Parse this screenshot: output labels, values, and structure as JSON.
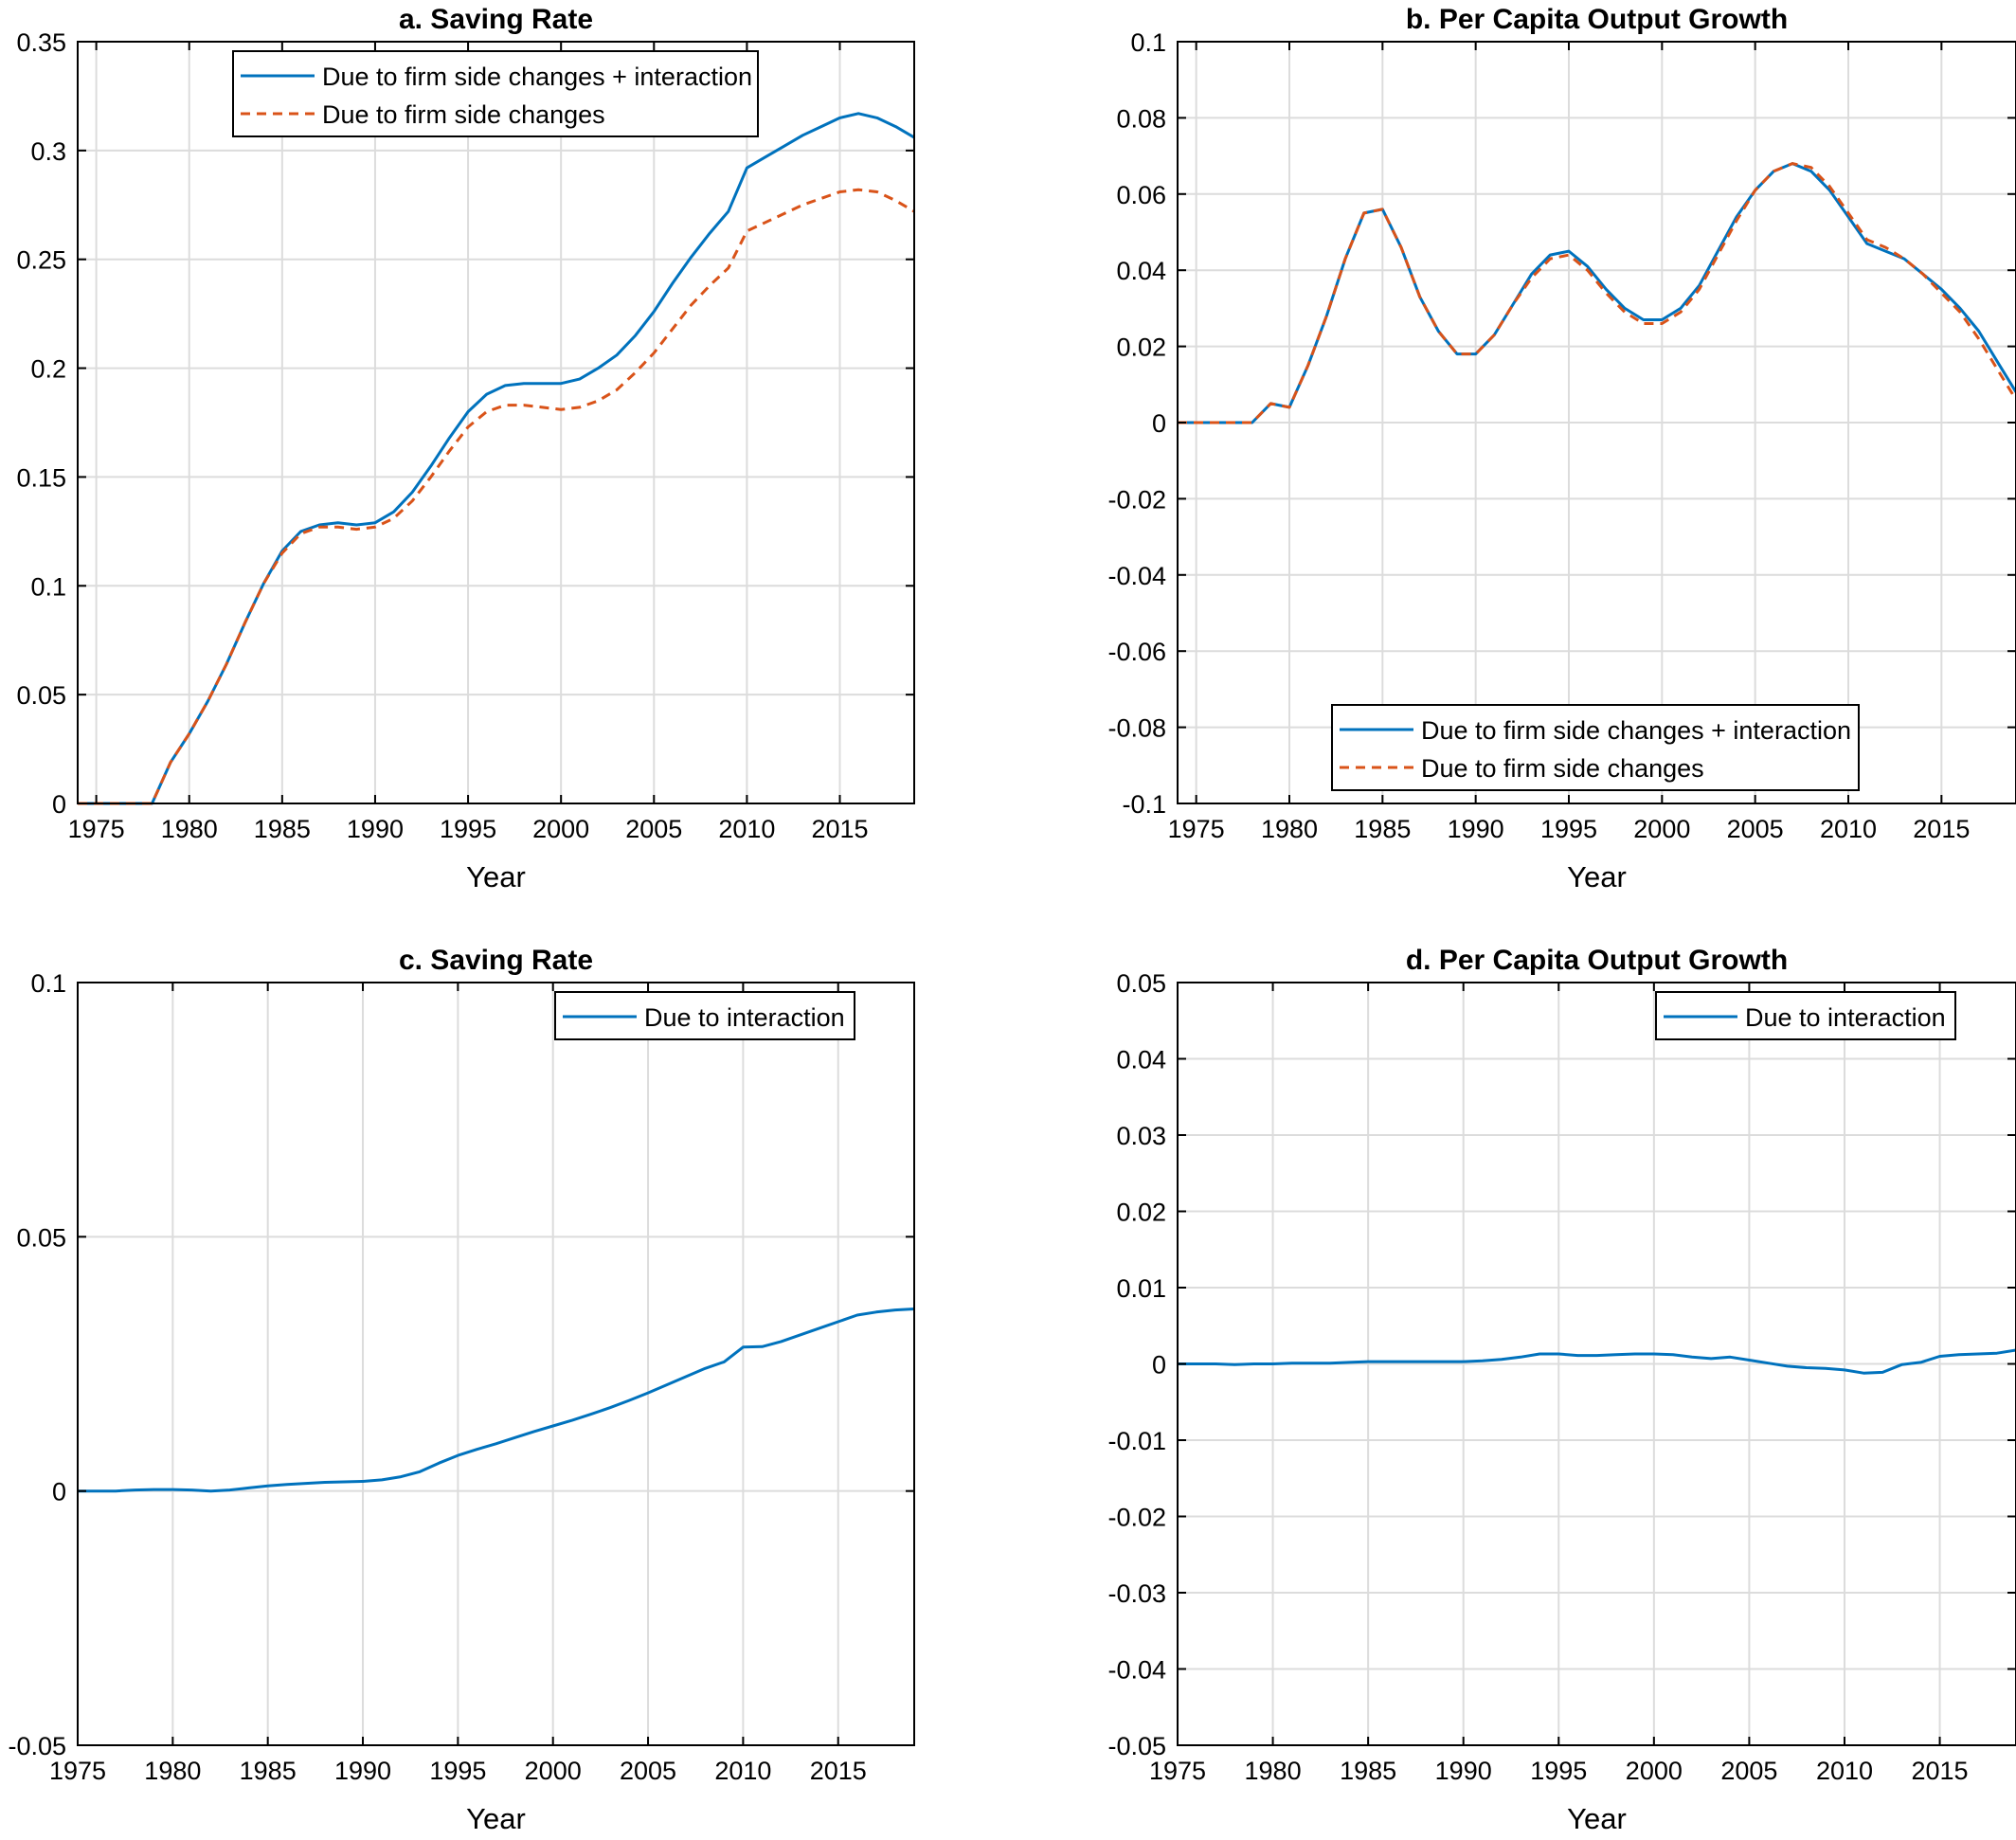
{
  "colors": {
    "blue": "#0072BD",
    "orange": "#D95319",
    "grid": "#dcdcdc",
    "axis": "#000000"
  },
  "chart_data": [
    {
      "type": "line",
      "title": "a. Saving Rate",
      "xlabel": "Year",
      "ylabel": "",
      "xlim": [
        1974,
        2019
      ],
      "ylim": [
        0,
        0.35
      ],
      "xticks": [
        1975,
        1980,
        1985,
        1990,
        1995,
        2000,
        2005,
        2010,
        2015
      ],
      "yticks": [
        0,
        0.05,
        0.1,
        0.15,
        0.2,
        0.25,
        0.3,
        0.35
      ],
      "ytick_labels": [
        "0",
        "0.05",
        "0.1",
        "0.15",
        "0.2",
        "0.25",
        "0.3",
        "0.35"
      ],
      "grid": true,
      "legend_position": "top-center",
      "x": [
        1974,
        1975,
        1976,
        1977,
        1978,
        1979,
        1980,
        1981,
        1982,
        1983,
        1984,
        1985,
        1986,
        1987,
        1988,
        1989,
        1990,
        1991,
        1992,
        1993,
        1994,
        1995,
        1996,
        1997,
        1998,
        1999,
        2000,
        2001,
        2002,
        2003,
        2004,
        2005,
        2006,
        2007,
        2008,
        2009,
        2010,
        2011,
        2012,
        2013,
        2014,
        2015,
        2016,
        2017,
        2018,
        2019
      ],
      "series": [
        {
          "name": "Due to firm side changes + interaction",
          "color": "blue",
          "dash": "solid",
          "values": [
            0,
            0,
            0,
            0,
            0,
            0.019,
            0.032,
            0.047,
            0.064,
            0.083,
            0.101,
            0.116,
            0.125,
            0.128,
            0.129,
            0.128,
            0.129,
            0.134,
            0.143,
            0.155,
            0.168,
            0.18,
            0.188,
            0.192,
            0.193,
            0.193,
            0.193,
            0.195,
            0.2,
            0.206,
            0.215,
            0.226,
            0.239,
            0.251,
            0.262,
            0.272,
            0.292,
            0.297,
            0.302,
            0.307,
            0.311,
            0.315,
            0.317,
            0.315,
            0.311,
            0.306
          ]
        },
        {
          "name": "Due to firm side changes",
          "color": "orange",
          "dash": "dashed",
          "values": [
            0,
            0,
            0,
            0,
            0,
            0.019,
            0.032,
            0.047,
            0.064,
            0.083,
            0.101,
            0.115,
            0.124,
            0.127,
            0.127,
            0.126,
            0.127,
            0.131,
            0.139,
            0.15,
            0.162,
            0.173,
            0.18,
            0.183,
            0.183,
            0.182,
            0.181,
            0.182,
            0.185,
            0.19,
            0.198,
            0.207,
            0.218,
            0.229,
            0.238,
            0.246,
            0.263,
            0.267,
            0.271,
            0.275,
            0.278,
            0.281,
            0.282,
            0.281,
            0.277,
            0.272
          ]
        }
      ]
    },
    {
      "type": "line",
      "title": "b. Per Capita Output Growth",
      "xlabel": "Year",
      "ylabel": "",
      "xlim": [
        1974,
        2019
      ],
      "ylim": [
        -0.1,
        0.1
      ],
      "xticks": [
        1975,
        1980,
        1985,
        1990,
        1995,
        2000,
        2005,
        2010,
        2015
      ],
      "yticks": [
        -0.1,
        -0.08,
        -0.06,
        -0.04,
        -0.02,
        0,
        0.02,
        0.04,
        0.06,
        0.08,
        0.1
      ],
      "ytick_labels": [
        "-0.1",
        "-0.08",
        "-0.06",
        "-0.04",
        "-0.02",
        "0",
        "0.02",
        "0.04",
        "0.06",
        "0.08",
        "0.1"
      ],
      "grid": true,
      "legend_position": "bottom-center",
      "x": [
        1974,
        1975,
        1976,
        1977,
        1978,
        1979,
        1980,
        1981,
        1982,
        1983,
        1984,
        1985,
        1986,
        1987,
        1988,
        1989,
        1990,
        1991,
        1992,
        1993,
        1994,
        1995,
        1996,
        1997,
        1998,
        1999,
        2000,
        2001,
        2002,
        2003,
        2004,
        2005,
        2006,
        2007,
        2008,
        2009,
        2010,
        2011,
        2012,
        2013,
        2014,
        2015,
        2016,
        2017,
        2018,
        2019
      ],
      "series": [
        {
          "name": "Due to firm side changes + interaction",
          "color": "blue",
          "dash": "solid",
          "values": [
            0,
            0,
            0,
            0,
            0,
            0.005,
            0.004,
            0.015,
            0.028,
            0.043,
            0.055,
            0.056,
            0.046,
            0.033,
            0.024,
            0.018,
            0.018,
            0.023,
            0.031,
            0.039,
            0.044,
            0.045,
            0.041,
            0.035,
            0.03,
            0.027,
            0.027,
            0.03,
            0.036,
            0.045,
            0.054,
            0.061,
            0.066,
            0.068,
            0.066,
            0.061,
            0.054,
            0.047,
            0.045,
            0.043,
            0.039,
            0.035,
            0.03,
            0.024,
            0.016,
            0.008
          ]
        },
        {
          "name": "Due to firm side changes",
          "color": "orange",
          "dash": "dashed",
          "values": [
            0,
            0,
            0,
            0,
            0,
            0.005,
            0.004,
            0.015,
            0.028,
            0.043,
            0.055,
            0.056,
            0.046,
            0.033,
            0.024,
            0.018,
            0.018,
            0.023,
            0.031,
            0.038,
            0.043,
            0.044,
            0.04,
            0.034,
            0.029,
            0.026,
            0.026,
            0.029,
            0.035,
            0.044,
            0.053,
            0.061,
            0.066,
            0.068,
            0.067,
            0.062,
            0.055,
            0.048,
            0.046,
            0.043,
            0.039,
            0.034,
            0.029,
            0.022,
            0.014,
            0.006
          ]
        }
      ]
    },
    {
      "type": "line",
      "title": "c. Saving Rate",
      "xlabel": "Year",
      "ylabel": "",
      "xlim": [
        1975,
        2019
      ],
      "ylim": [
        -0.05,
        0.1
      ],
      "xticks": [
        1975,
        1980,
        1985,
        1990,
        1995,
        2000,
        2005,
        2010,
        2015
      ],
      "yticks": [
        -0.05,
        0,
        0.05,
        0.1
      ],
      "ytick_labels": [
        "-0.05",
        "0",
        "0.05",
        "0.1"
      ],
      "grid": true,
      "legend_position": "top-right",
      "x": [
        1975,
        1976,
        1977,
        1978,
        1979,
        1980,
        1981,
        1982,
        1983,
        1984,
        1985,
        1986,
        1987,
        1988,
        1989,
        1990,
        1991,
        1992,
        1993,
        1994,
        1995,
        1996,
        1997,
        1998,
        1999,
        2000,
        2001,
        2002,
        2003,
        2004,
        2005,
        2006,
        2007,
        2008,
        2009,
        2010,
        2011,
        2012,
        2013,
        2014,
        2015,
        2016,
        2017,
        2018,
        2019
      ],
      "series": [
        {
          "name": "Due to interaction",
          "color": "blue",
          "dash": "solid",
          "values": [
            0,
            0,
            0,
            0.0002,
            0.0003,
            0.0003,
            0.0002,
            0,
            0.0002,
            0.0006,
            0.001,
            0.0013,
            0.0015,
            0.0017,
            0.0018,
            0.0019,
            0.0022,
            0.0028,
            0.0038,
            0.0055,
            0.007,
            0.0082,
            0.0093,
            0.0105,
            0.0117,
            0.0128,
            0.0139,
            0.0151,
            0.0164,
            0.0178,
            0.0193,
            0.0209,
            0.0225,
            0.0241,
            0.0254,
            0.0283,
            0.0284,
            0.0294,
            0.0307,
            0.032,
            0.0333,
            0.0346,
            0.0352,
            0.0356,
            0.0358
          ]
        }
      ]
    },
    {
      "type": "line",
      "title": "d. Per Capita Output Growth",
      "xlabel": "Year",
      "ylabel": "",
      "xlim": [
        1975,
        2019
      ],
      "ylim": [
        -0.05,
        0.05
      ],
      "xticks": [
        1975,
        1980,
        1985,
        1990,
        1995,
        2000,
        2005,
        2010,
        2015
      ],
      "yticks": [
        -0.05,
        -0.04,
        -0.03,
        -0.02,
        -0.01,
        0,
        0.01,
        0.02,
        0.03,
        0.04,
        0.05
      ],
      "ytick_labels": [
        "-0.05",
        "-0.04",
        "-0.03",
        "-0.02",
        "-0.01",
        "0",
        "0.01",
        "0.02",
        "0.03",
        "0.04",
        "0.05"
      ],
      "grid": true,
      "legend_position": "top-right",
      "x": [
        1975,
        1976,
        1977,
        1978,
        1979,
        1980,
        1981,
        1982,
        1983,
        1984,
        1985,
        1986,
        1987,
        1988,
        1989,
        1990,
        1991,
        1992,
        1993,
        1994,
        1995,
        1996,
        1997,
        1998,
        1999,
        2000,
        2001,
        2002,
        2003,
        2004,
        2005,
        2006,
        2007,
        2008,
        2009,
        2010,
        2011,
        2012,
        2013,
        2014,
        2015,
        2016,
        2017,
        2018,
        2019
      ],
      "series": [
        {
          "name": "Due to interaction",
          "color": "blue",
          "dash": "solid",
          "values": [
            0,
            0,
            0,
            -0.0001,
            0,
            0,
            0.0001,
            0.0001,
            0.0001,
            0.0002,
            0.0003,
            0.0003,
            0.0003,
            0.0003,
            0.0003,
            0.0003,
            0.0004,
            0.0006,
            0.0009,
            0.0013,
            0.0013,
            0.0011,
            0.0011,
            0.0012,
            0.0013,
            0.0013,
            0.0012,
            0.0009,
            0.0007,
            0.0009,
            0.0005,
            0.0001,
            -0.0003,
            -0.0005,
            -0.0006,
            -0.0008,
            -0.0012,
            -0.0011,
            -0.0001,
            0.0002,
            0.001,
            0.0012,
            0.0013,
            0.0014,
            0.0018
          ]
        }
      ]
    }
  ]
}
